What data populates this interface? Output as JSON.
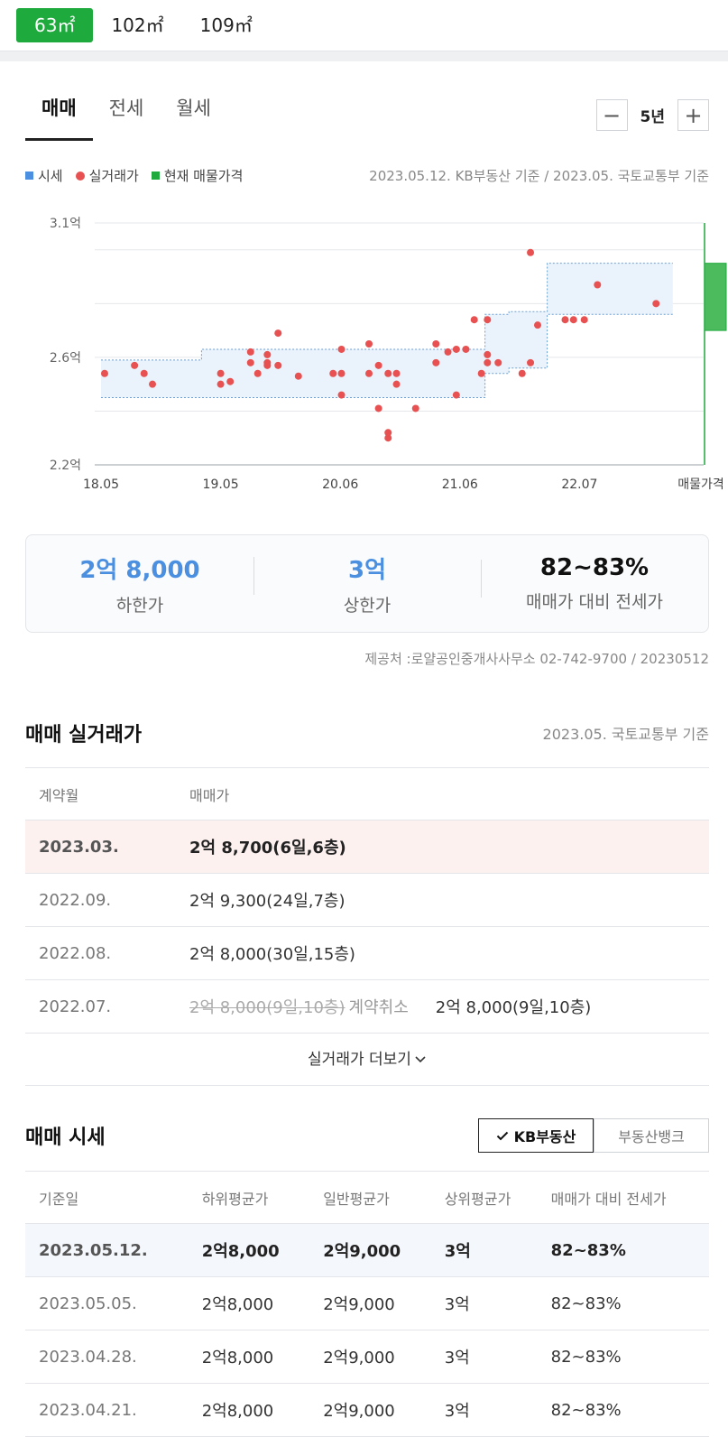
{
  "area_tabs": [
    "63㎡",
    "102㎡",
    "109㎡"
  ],
  "deal_tabs": [
    "매매",
    "전세",
    "월세"
  ],
  "period": {
    "minus": "−",
    "value": "5년",
    "plus": "+"
  },
  "legend": {
    "sise": "시세",
    "real": "실거래가",
    "listing": "현재 매물가격"
  },
  "basis": "2023.05.12. KB부동산 기준 / 2023.05. 국토교통부 기준",
  "chart_data": {
    "type": "scatter",
    "x_ticks": [
      "18.05",
      "19.05",
      "20.06",
      "21.06",
      "22.07",
      "매물가격"
    ],
    "y_ticks": [
      "3.1억",
      "2.6억",
      "2.2억"
    ],
    "ylim": [
      2.2,
      3.1
    ],
    "colors": {
      "band": "#eaf3fb",
      "band_line": "#6c9fd2",
      "point": "#e85151",
      "listing": "#1eaa3d",
      "grid": "#e5e7ea"
    },
    "band": [
      {
        "from": 0.0,
        "to": 0.84,
        "low": 2.45,
        "high": 2.59
      },
      {
        "from": 0.84,
        "to": 3.21,
        "low": 2.45,
        "high": 2.63
      },
      {
        "from": 3.21,
        "to": 3.41,
        "low": 2.54,
        "high": 2.76
      },
      {
        "from": 3.41,
        "to": 3.73,
        "low": 2.56,
        "high": 2.77
      },
      {
        "from": 3.73,
        "to": 4.78,
        "low": 2.76,
        "high": 2.95
      }
    ],
    "listing": {
      "low": 2.7,
      "high": 2.95
    },
    "points": [
      [
        0.03,
        2.54
      ],
      [
        0.28,
        2.57
      ],
      [
        0.36,
        2.54
      ],
      [
        0.43,
        2.5
      ],
      [
        1.0,
        2.5
      ],
      [
        1.0,
        2.54
      ],
      [
        1.08,
        2.51
      ],
      [
        1.25,
        2.58
      ],
      [
        1.25,
        2.62
      ],
      [
        1.31,
        2.54
      ],
      [
        1.39,
        2.57
      ],
      [
        1.39,
        2.58
      ],
      [
        1.39,
        2.61
      ],
      [
        1.48,
        2.57
      ],
      [
        1.48,
        2.69
      ],
      [
        1.65,
        2.53
      ],
      [
        1.94,
        2.54
      ],
      [
        2.01,
        2.46
      ],
      [
        2.01,
        2.54
      ],
      [
        2.01,
        2.63
      ],
      [
        2.24,
        2.54
      ],
      [
        2.24,
        2.65
      ],
      [
        2.32,
        2.41
      ],
      [
        2.32,
        2.57
      ],
      [
        2.4,
        2.3
      ],
      [
        2.4,
        2.32
      ],
      [
        2.4,
        2.54
      ],
      [
        2.47,
        2.5
      ],
      [
        2.47,
        2.54
      ],
      [
        2.63,
        2.41
      ],
      [
        2.8,
        2.58
      ],
      [
        2.8,
        2.65
      ],
      [
        2.9,
        2.62
      ],
      [
        2.97,
        2.46
      ],
      [
        2.97,
        2.63
      ],
      [
        3.05,
        2.63
      ],
      [
        3.12,
        2.74
      ],
      [
        3.18,
        2.54
      ],
      [
        3.23,
        2.58
      ],
      [
        3.23,
        2.61
      ],
      [
        3.23,
        2.74
      ],
      [
        3.32,
        2.58
      ],
      [
        3.52,
        2.54
      ],
      [
        3.59,
        2.58
      ],
      [
        3.59,
        2.99
      ],
      [
        3.65,
        2.72
      ],
      [
        3.88,
        2.74
      ],
      [
        3.95,
        2.74
      ],
      [
        4.04,
        2.74
      ],
      [
        4.15,
        2.87
      ],
      [
        4.64,
        2.8
      ]
    ]
  },
  "summary": [
    {
      "value": "2억 8,000",
      "label": "하한가"
    },
    {
      "value": "3억",
      "label": "상한가"
    },
    {
      "value": "82~83%",
      "label": "매매가 대비 전세가"
    }
  ],
  "source": "제공처 :로얄공인중개사사무소 02-742-9700 / 20230512",
  "transactions": {
    "title": "매매 실거래가",
    "basis": "2023.05. 국토교통부 기준",
    "headers": [
      "계약월",
      "매매가"
    ],
    "rows": [
      {
        "date": "2023.03.",
        "price": "2억 8,700(6일,6층)"
      },
      {
        "date": "2022.09.",
        "price": "2억 9,300(24일,7층)"
      },
      {
        "date": "2022.08.",
        "price": "2억 8,000(30일,15층)"
      },
      {
        "date": "2022.07.",
        "cancelled": "2억 8,000(9일,10층)",
        "cancel_tag": "계약취소",
        "price": "2억 8,000(9일,10층)"
      }
    ],
    "more": "실거래가 더보기"
  },
  "sise": {
    "title": "매매 시세",
    "sources": [
      "KB부동산",
      "부동산뱅크"
    ],
    "headers": [
      "기준일",
      "하위평균가",
      "일반평균가",
      "상위평균가",
      "매매가 대비 전세가"
    ],
    "rows": [
      [
        "2023.05.12.",
        "2억8,000",
        "2억9,000",
        "3억",
        "82~83%"
      ],
      [
        "2023.05.05.",
        "2억8,000",
        "2억9,000",
        "3억",
        "82~83%"
      ],
      [
        "2023.04.28.",
        "2억8,000",
        "2억9,000",
        "3억",
        "82~83%"
      ],
      [
        "2023.04.21.",
        "2억8,000",
        "2억9,000",
        "3억",
        "82~83%"
      ]
    ]
  }
}
